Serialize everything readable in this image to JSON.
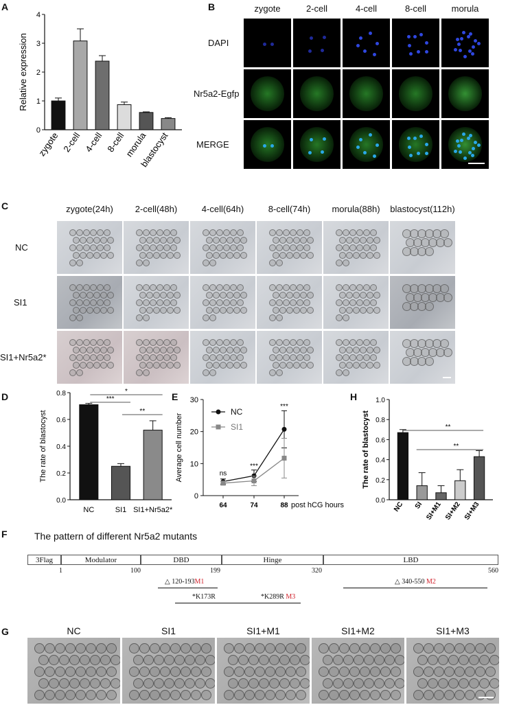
{
  "panels": {
    "A": "A",
    "B": "B",
    "C": "C",
    "D": "D",
    "E": "E",
    "F": "F",
    "G": "G",
    "H": "H"
  },
  "panelA": {
    "chart_data": {
      "type": "bar",
      "ylabel": "Relative expression",
      "categories": [
        "zygote",
        "2-cell",
        "4-cell",
        "8-cell",
        "morula",
        "blastocyst"
      ],
      "values": [
        1.0,
        3.08,
        2.38,
        0.87,
        0.6,
        0.39
      ],
      "errors": [
        0.1,
        0.42,
        0.19,
        0.09,
        0.02,
        0.03
      ],
      "colors": [
        "#111111",
        "#a8a8a8",
        "#6e6e6e",
        "#dcdcdc",
        "#555555",
        "#888888"
      ],
      "ylim": [
        0,
        4
      ],
      "yticks": [
        0,
        1,
        2,
        3,
        4
      ]
    }
  },
  "panelB": {
    "columns": [
      "zygote",
      "2-cell",
      "4-cell",
      "8-cell",
      "morula"
    ],
    "rows": [
      "DAPI",
      "Nr5a2-Egfp",
      "MERGE"
    ]
  },
  "panelC": {
    "columns": [
      "zygote(24h)",
      "2-cell(48h)",
      "4-cell(64h)",
      "8-cell(74h)",
      "morula(88h)",
      "blastocyst(112h)"
    ],
    "rows": [
      "NC",
      "SI1",
      "SI1+Nr5a2*"
    ]
  },
  "panelD": {
    "chart_data": {
      "type": "bar",
      "ylabel": "The rate of blastocyst",
      "categories": [
        "NC",
        "SI1",
        "SI1+Nr5a2*"
      ],
      "values": [
        0.71,
        0.25,
        0.52
      ],
      "errors": [
        0.01,
        0.02,
        0.07
      ],
      "colors": [
        "#111111",
        "#555555",
        "#8a8a8a"
      ],
      "ylim": [
        0,
        0.8
      ],
      "yticks": [
        "0.0",
        "0.2",
        "0.4",
        "0.6",
        "0.8"
      ],
      "annotations": [
        {
          "from": 0,
          "to": 1,
          "label": "***"
        },
        {
          "from": 0,
          "to": 2,
          "label": "*"
        },
        {
          "from": 1,
          "to": 2,
          "label": "**"
        }
      ]
    }
  },
  "panelE": {
    "chart_data": {
      "type": "line",
      "ylabel": "Average cell number",
      "xlabel": "post hCG hours",
      "x": [
        "64",
        "74",
        "88"
      ],
      "series": [
        {
          "name": "NC",
          "values": [
            4.4,
            6.2,
            20.7
          ],
          "errors": [
            0.8,
            1.8,
            5.8
          ],
          "color": "#111111",
          "marker": "circle"
        },
        {
          "name": "SI1",
          "values": [
            3.9,
            4.6,
            11.7
          ],
          "errors": [
            0.6,
            1.5,
            6.2
          ],
          "color": "#888888",
          "marker": "square"
        }
      ],
      "ylim": [
        0,
        30
      ],
      "yticks": [
        0,
        10,
        20,
        30
      ],
      "sig": [
        "ns",
        "***",
        "***"
      ]
    }
  },
  "panelH": {
    "chart_data": {
      "type": "bar",
      "ylabel": "The rate of blastocyst",
      "categories": [
        "NC",
        "SI",
        "SI+M1",
        "SI+M2",
        "SI+M3"
      ],
      "values": [
        0.67,
        0.14,
        0.07,
        0.19,
        0.43
      ],
      "errors": [
        0.03,
        0.13,
        0.07,
        0.11,
        0.06
      ],
      "colors": [
        "#111111",
        "#999999",
        "#666666",
        "#cccccc",
        "#555555"
      ],
      "ylim": [
        0,
        1.0
      ],
      "yticks": [
        "0.0",
        "0.2",
        "0.4",
        "0.6",
        "0.8",
        "1.0"
      ],
      "annotations": [
        {
          "from": 0,
          "to": 4,
          "label": "**"
        },
        {
          "from": 1,
          "to": 4,
          "label": "**"
        }
      ]
    }
  },
  "panelF": {
    "title": "The pattern of different Nr5a2 mutants",
    "domains": [
      {
        "name": "3Flag",
        "color": "#9bb7dc"
      },
      {
        "name": "Modulator",
        "color": "#6bbf45"
      },
      {
        "name": "DBD",
        "color": "#e0202a"
      },
      {
        "name": "Hinge",
        "color": "#d3d3d3"
      },
      {
        "name": "LBD",
        "color": "#4f79c7"
      }
    ],
    "positions": [
      "1",
      "100",
      "199",
      "320",
      "560"
    ],
    "mutants": [
      {
        "text": "△ 120-193",
        "tag": "M1"
      },
      {
        "text": "△ 340-550",
        "tag": "M2"
      },
      {
        "text": "*K173R",
        "tag": ""
      },
      {
        "text": "*K289R",
        "tag": "M3"
      }
    ]
  },
  "panelG": {
    "labels": [
      "NC",
      "SI1",
      "SI1+M1",
      "SI1+M2",
      "SI1+M3"
    ]
  }
}
